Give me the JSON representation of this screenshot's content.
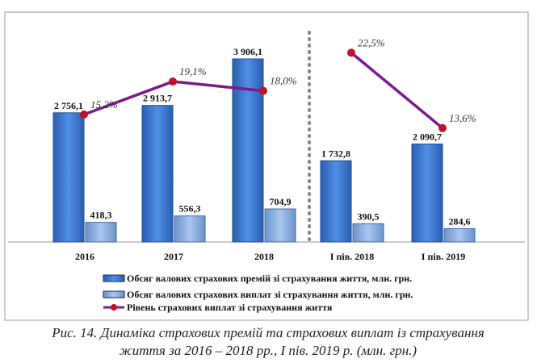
{
  "chart_data": {
    "type": "bar",
    "categories": [
      "2016",
      "2017",
      "2018",
      "I пів. 2018",
      "I пів. 2019"
    ],
    "series": [
      {
        "name": "Обсяг валових страхових премій зі страхування життя, млн. грн.",
        "type": "bar",
        "color": "#3f7fd6",
        "values": [
          2756.1,
          2913.7,
          3906.1,
          1732.8,
          2090.7
        ],
        "labels": [
          "2 756,1",
          "2 913,7",
          "3 906,1",
          "1 732,8",
          "2 090,7"
        ]
      },
      {
        "name": "Обсяг валових страхових виплат зі страхування життя, млн. грн.",
        "type": "bar",
        "color": "#8fb3e3",
        "values": [
          418.3,
          556.3,
          704.9,
          390.5,
          284.6
        ],
        "labels": [
          "418,3",
          "556,3",
          "704,9",
          "390,5",
          "284,6"
        ]
      },
      {
        "name": "Рівень страхових виплат зі страхування життя",
        "type": "line",
        "color": "#7b1a8c",
        "marker_color": "#c0102a",
        "values": [
          15.2,
          19.1,
          18.0,
          22.5,
          13.6
        ],
        "labels": [
          "15,2%",
          "19,1%",
          "18,0%",
          "22,5%",
          "13,6%"
        ]
      }
    ],
    "line_segments": [
      [
        0,
        1,
        2
      ],
      [
        3,
        4
      ]
    ],
    "ylim": [
      0,
      4000
    ],
    "grid": false,
    "legend": "bottom"
  },
  "caption": {
    "line1": "Рис. 14. Динаміка страхових премій та страхових виплат із страхування",
    "line2": "життя за 2016 – 2018 рр., І пів. 2019 р. (млн. грн.)"
  }
}
